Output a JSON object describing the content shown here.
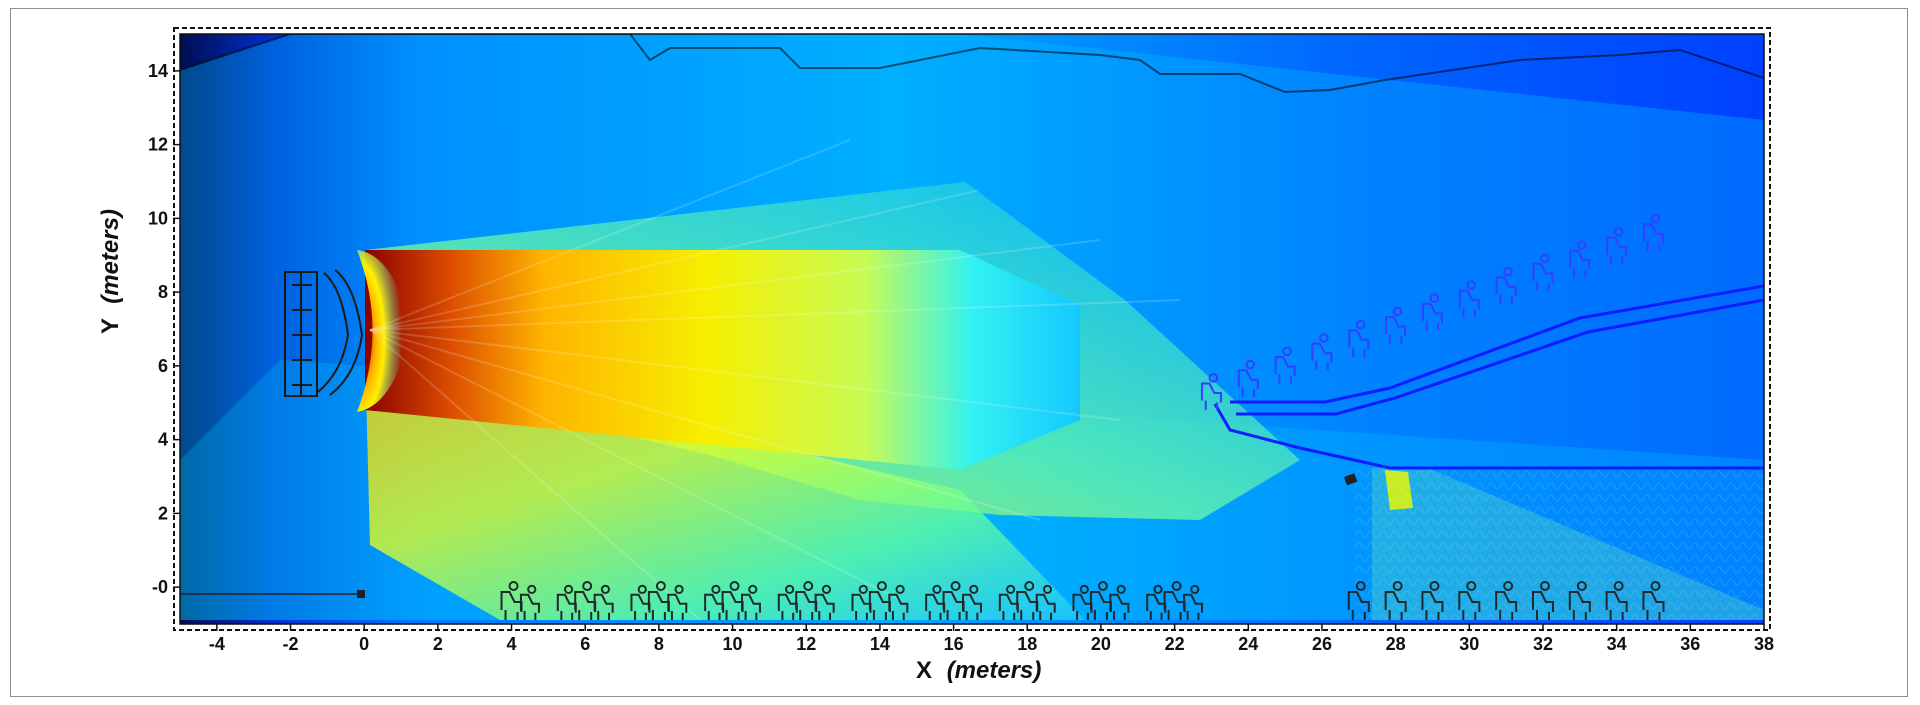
{
  "chart_data": {
    "type": "heatmap",
    "title": "",
    "xlabel": {
      "main": "X",
      "unit": "(meters)"
    },
    "ylabel": {
      "main": "Y",
      "unit": "(meters)"
    },
    "xlim": [
      -5,
      38
    ],
    "ylim": [
      -1,
      15
    ],
    "xticks": [
      -4,
      -2,
      0,
      2,
      4,
      6,
      8,
      10,
      12,
      14,
      16,
      18,
      20,
      22,
      24,
      26,
      28,
      30,
      32,
      34,
      36,
      38
    ],
    "yticks": [
      14,
      12,
      10,
      8,
      6,
      4,
      2,
      0
    ],
    "ytick_labels": [
      "14",
      "12",
      "10",
      "8",
      "6",
      "4",
      "2",
      "-0"
    ],
    "grid": false,
    "legend": "none",
    "colormap": [
      "#000b3f",
      "#0025d8",
      "#0079ff",
      "#19d7f3",
      "#82f59a",
      "#fff400",
      "#ffb400",
      "#e14d00",
      "#7a0000"
    ],
    "source_position": [
      0.7,
      6.5
    ],
    "field_peak_x_range": [
      0.7,
      28
    ],
    "audience_front_rows_x": [
      4,
      6,
      8,
      10,
      12,
      14,
      16,
      18,
      20,
      22
    ],
    "audience_back_rows_x": [
      27,
      28,
      29,
      30,
      31,
      32,
      33,
      34,
      35
    ],
    "balcony_seats_x": [
      23,
      24,
      25,
      26,
      27,
      28,
      29,
      30,
      31,
      32,
      33,
      34,
      35
    ]
  }
}
